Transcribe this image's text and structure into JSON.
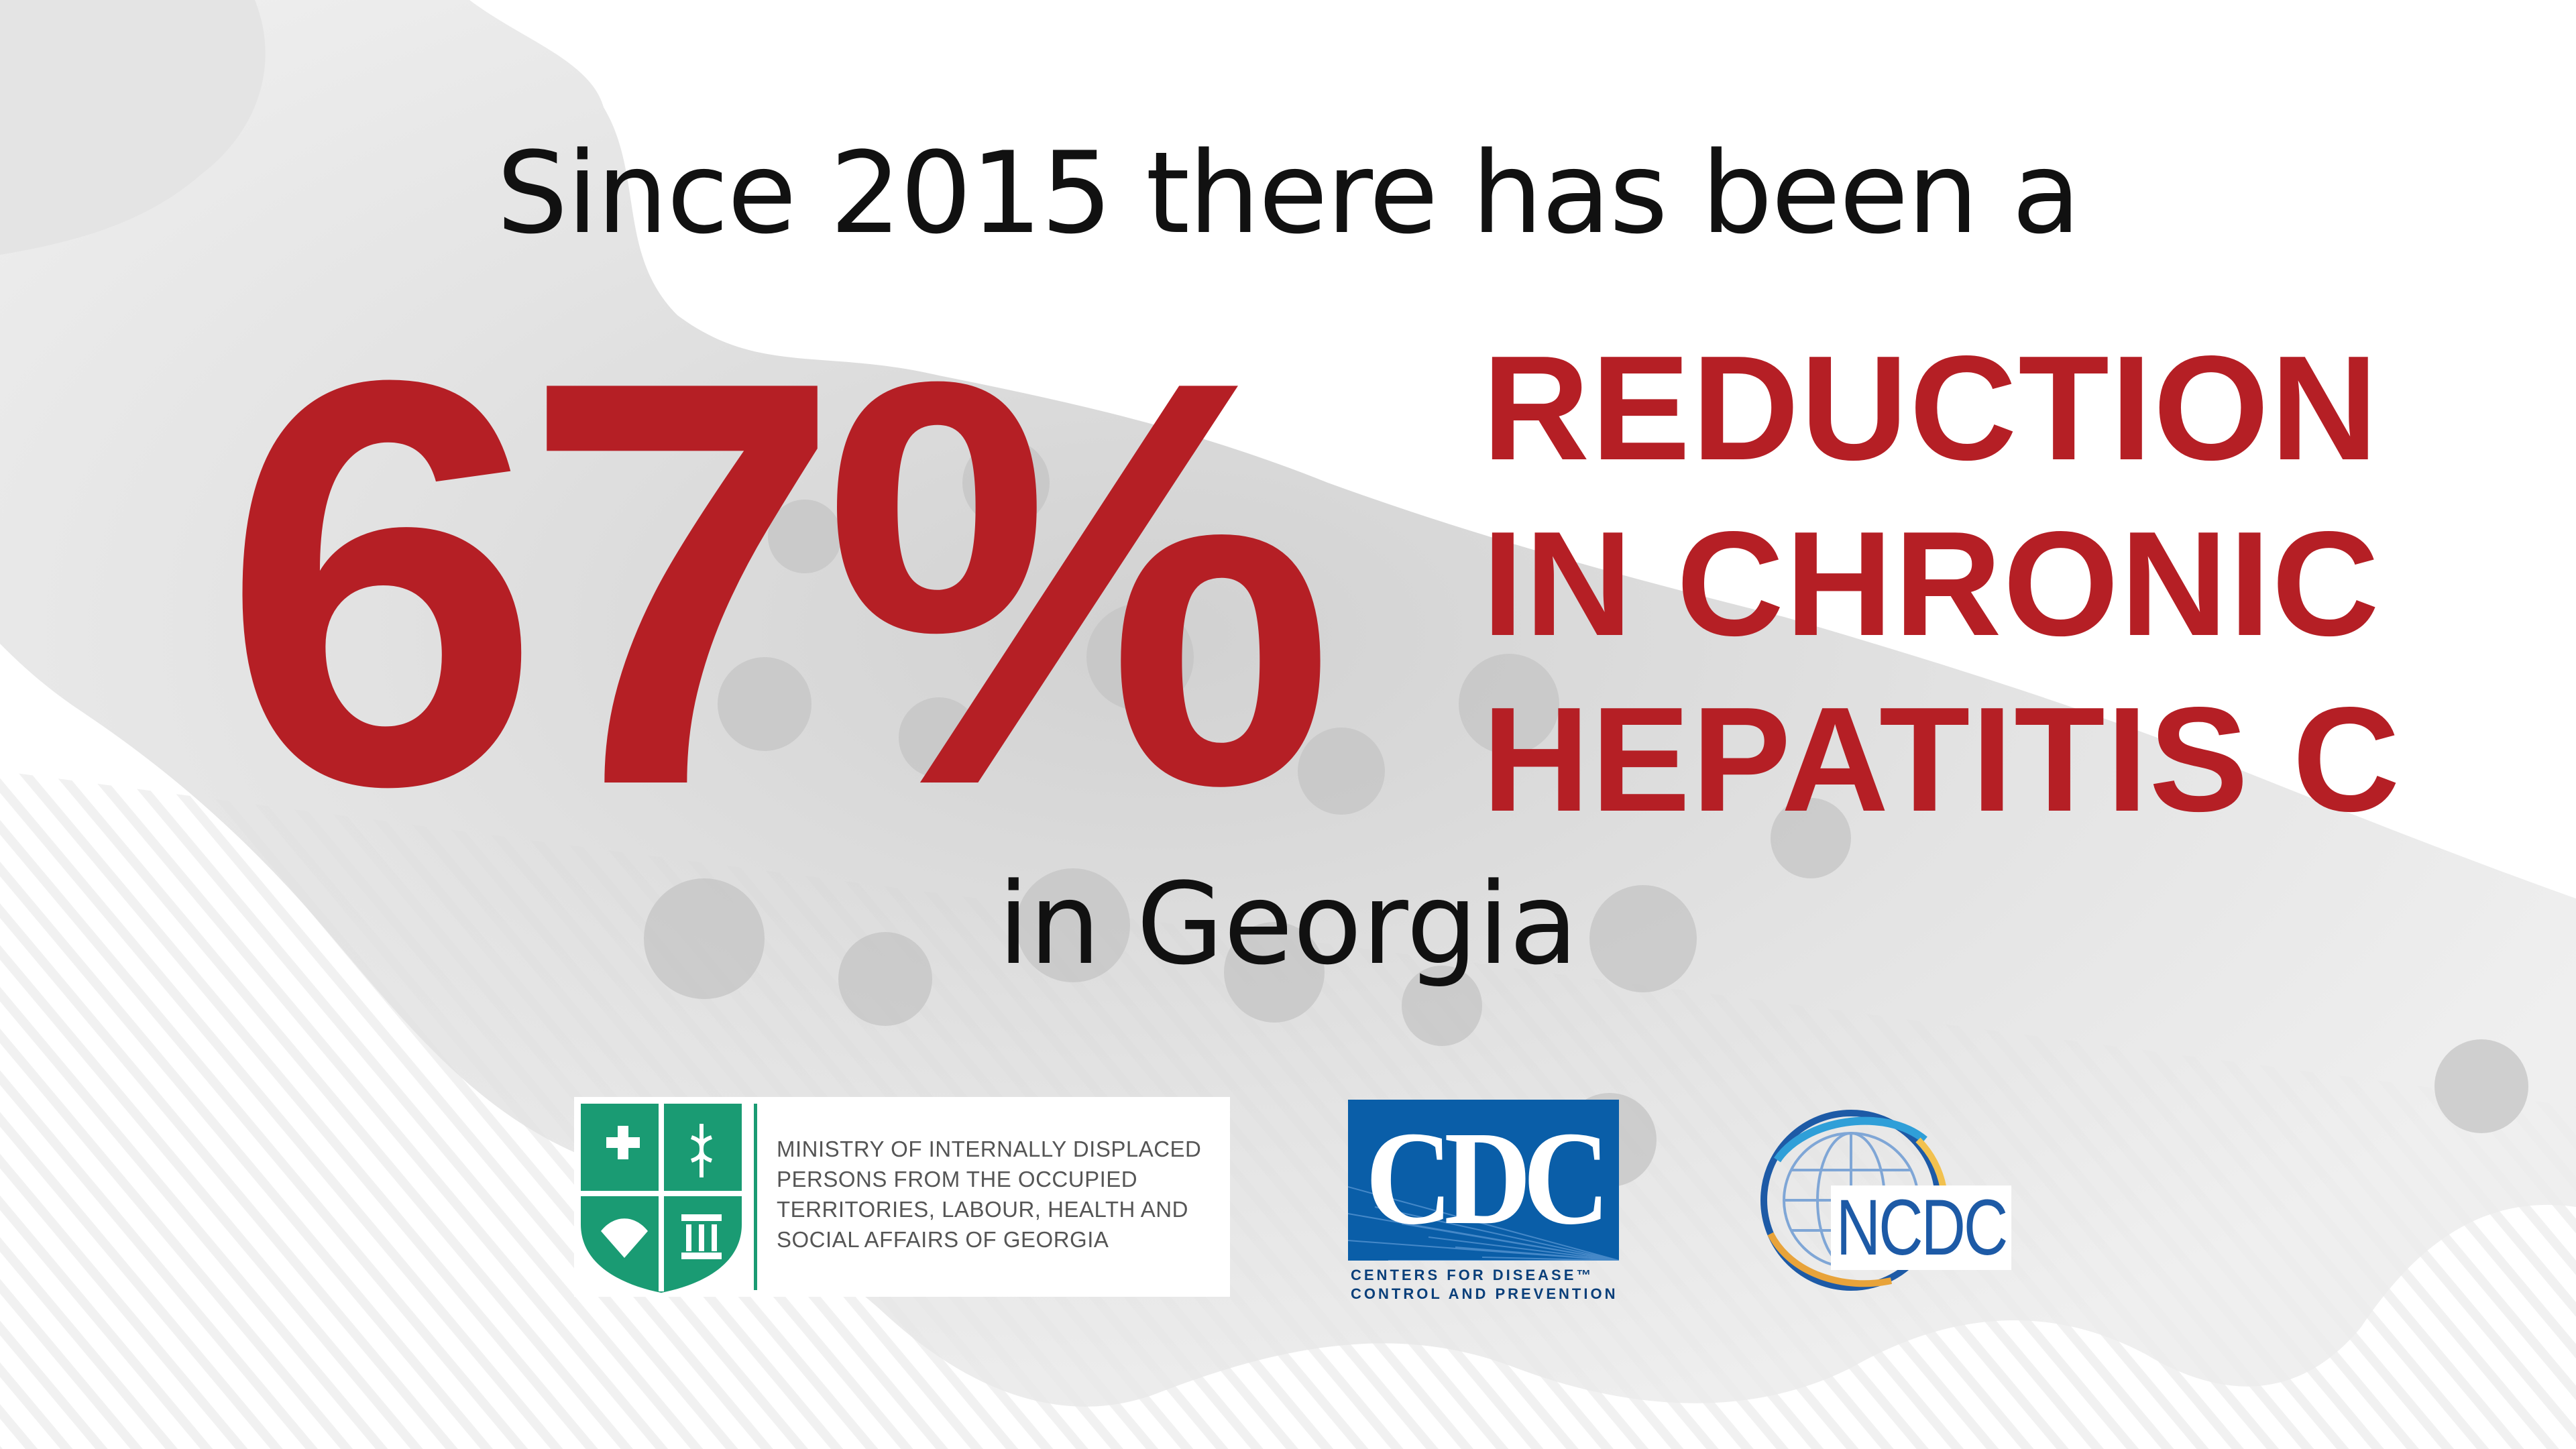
{
  "headline": "Since 2015 there has been a",
  "stat": {
    "percent": "67%",
    "lines": [
      "REDUCTION",
      "IN CHRONIC",
      "HEPATITIS C"
    ]
  },
  "location": "in Georgia",
  "logos": {
    "ministry": {
      "lines": [
        "MINISTRY OF INTERNALLY DISPLACED",
        "PERSONS FROM THE OCCUPIED",
        "TERRITORIES, LABOUR, HEALTH AND",
        "SOCIAL AFFAIRS OF GEORGIA"
      ]
    },
    "cdc": {
      "letters": "CDC",
      "sub_lines": [
        "Centers for Disease™",
        "Control and Prevention"
      ]
    },
    "ncdc": {
      "letters": "NCDC"
    }
  },
  "colors": {
    "accent_red": "#b51f25",
    "text_dark": "#111111",
    "ministry_green": "#1a9b73",
    "cdc_blue": "#0a5ea8",
    "ncdc_blue": "#1d5aa6"
  }
}
